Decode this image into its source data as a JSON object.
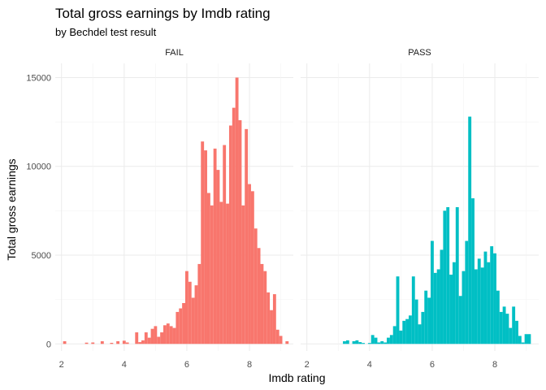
{
  "chart_data": {
    "type": "bar",
    "title": "Total gross earnings by Imdb rating",
    "subtitle": "by Bechdel test result",
    "xlabel": "Imdb rating",
    "ylabel": "Total gross earnings",
    "xlim": [
      1.8,
      9.4
    ],
    "ylim": [
      -400,
      15800
    ],
    "x_ticks": [
      2,
      4,
      6,
      8
    ],
    "y_ticks": [
      0,
      5000,
      10000,
      15000
    ],
    "bin_width": 0.1,
    "grid": true,
    "colors": {
      "FAIL": "#F8766D",
      "PASS": "#00BFC4"
    },
    "panels": [
      {
        "name": "FAIL",
        "bars": [
          {
            "x": 2.1,
            "y": 150
          },
          {
            "x": 2.8,
            "y": 70
          },
          {
            "x": 3.0,
            "y": 80
          },
          {
            "x": 3.3,
            "y": 150
          },
          {
            "x": 3.6,
            "y": 60
          },
          {
            "x": 3.8,
            "y": 150
          },
          {
            "x": 4.0,
            "y": 180
          },
          {
            "x": 4.1,
            "y": 80
          },
          {
            "x": 4.4,
            "y": 650
          },
          {
            "x": 4.5,
            "y": 100
          },
          {
            "x": 4.6,
            "y": 200
          },
          {
            "x": 4.7,
            "y": 650
          },
          {
            "x": 4.8,
            "y": 350
          },
          {
            "x": 4.9,
            "y": 850
          },
          {
            "x": 5.0,
            "y": 1000
          },
          {
            "x": 5.1,
            "y": 400
          },
          {
            "x": 5.2,
            "y": 650
          },
          {
            "x": 5.3,
            "y": 1050
          },
          {
            "x": 5.4,
            "y": 1150
          },
          {
            "x": 5.5,
            "y": 1000
          },
          {
            "x": 5.6,
            "y": 900
          },
          {
            "x": 5.7,
            "y": 1800
          },
          {
            "x": 5.8,
            "y": 2000
          },
          {
            "x": 5.9,
            "y": 2300
          },
          {
            "x": 6.0,
            "y": 4100
          },
          {
            "x": 6.1,
            "y": 3500
          },
          {
            "x": 6.2,
            "y": 2600
          },
          {
            "x": 6.3,
            "y": 3300
          },
          {
            "x": 6.4,
            "y": 4500
          },
          {
            "x": 6.5,
            "y": 11400
          },
          {
            "x": 6.6,
            "y": 10900
          },
          {
            "x": 6.7,
            "y": 8500
          },
          {
            "x": 6.8,
            "y": 7800
          },
          {
            "x": 6.9,
            "y": 11000
          },
          {
            "x": 7.0,
            "y": 9800
          },
          {
            "x": 7.1,
            "y": 8000
          },
          {
            "x": 7.2,
            "y": 11200
          },
          {
            "x": 7.3,
            "y": 7900
          },
          {
            "x": 7.4,
            "y": 12300
          },
          {
            "x": 7.5,
            "y": 13300
          },
          {
            "x": 7.6,
            "y": 15000
          },
          {
            "x": 7.7,
            "y": 12600
          },
          {
            "x": 7.8,
            "y": 7800
          },
          {
            "x": 7.9,
            "y": 12100
          },
          {
            "x": 8.0,
            "y": 9000
          },
          {
            "x": 8.1,
            "y": 8600
          },
          {
            "x": 8.2,
            "y": 6500
          },
          {
            "x": 8.3,
            "y": 5400
          },
          {
            "x": 8.4,
            "y": 4500
          },
          {
            "x": 8.5,
            "y": 4100
          },
          {
            "x": 8.6,
            "y": 2900
          },
          {
            "x": 8.7,
            "y": 1900
          },
          {
            "x": 8.8,
            "y": 2800
          },
          {
            "x": 8.9,
            "y": 800
          },
          {
            "x": 9.0,
            "y": 450
          },
          {
            "x": 9.2,
            "y": 150
          }
        ]
      },
      {
        "name": "PASS",
        "bars": [
          {
            "x": 3.2,
            "y": 150
          },
          {
            "x": 3.3,
            "y": 200
          },
          {
            "x": 3.5,
            "y": 150
          },
          {
            "x": 3.6,
            "y": 200
          },
          {
            "x": 3.7,
            "y": 100
          },
          {
            "x": 3.8,
            "y": 50
          },
          {
            "x": 4.0,
            "y": 50
          },
          {
            "x": 4.1,
            "y": 500
          },
          {
            "x": 4.2,
            "y": 350
          },
          {
            "x": 4.3,
            "y": 80
          },
          {
            "x": 4.4,
            "y": 150
          },
          {
            "x": 4.5,
            "y": 80
          },
          {
            "x": 4.6,
            "y": 350
          },
          {
            "x": 4.7,
            "y": 500
          },
          {
            "x": 4.8,
            "y": 1000
          },
          {
            "x": 4.9,
            "y": 3800
          },
          {
            "x": 5.0,
            "y": 750
          },
          {
            "x": 5.1,
            "y": 1300
          },
          {
            "x": 5.2,
            "y": 1400
          },
          {
            "x": 5.3,
            "y": 1600
          },
          {
            "x": 5.4,
            "y": 3800
          },
          {
            "x": 5.5,
            "y": 2500
          },
          {
            "x": 5.6,
            "y": 1100
          },
          {
            "x": 5.7,
            "y": 1800
          },
          {
            "x": 5.8,
            "y": 3000
          },
          {
            "x": 5.9,
            "y": 2600
          },
          {
            "x": 6.0,
            "y": 5800
          },
          {
            "x": 6.1,
            "y": 4000
          },
          {
            "x": 6.2,
            "y": 4200
          },
          {
            "x": 6.3,
            "y": 5300
          },
          {
            "x": 6.4,
            "y": 7500
          },
          {
            "x": 6.5,
            "y": 7700
          },
          {
            "x": 6.6,
            "y": 3900
          },
          {
            "x": 6.7,
            "y": 4600
          },
          {
            "x": 6.8,
            "y": 7700
          },
          {
            "x": 6.9,
            "y": 2700
          },
          {
            "x": 7.0,
            "y": 4100
          },
          {
            "x": 7.1,
            "y": 5800
          },
          {
            "x": 7.2,
            "y": 12800
          },
          {
            "x": 7.3,
            "y": 8200
          },
          {
            "x": 7.4,
            "y": 4200
          },
          {
            "x": 7.5,
            "y": 4800
          },
          {
            "x": 7.6,
            "y": 4300
          },
          {
            "x": 7.7,
            "y": 5200
          },
          {
            "x": 7.8,
            "y": 4600
          },
          {
            "x": 7.9,
            "y": 5500
          },
          {
            "x": 8.0,
            "y": 5100
          },
          {
            "x": 8.1,
            "y": 3000
          },
          {
            "x": 8.2,
            "y": 1800
          },
          {
            "x": 8.3,
            "y": 2100
          },
          {
            "x": 8.4,
            "y": 1700
          },
          {
            "x": 8.5,
            "y": 900
          },
          {
            "x": 8.6,
            "y": 2100
          },
          {
            "x": 8.7,
            "y": 1300
          },
          {
            "x": 8.8,
            "y": 450
          },
          {
            "x": 8.9,
            "y": 80
          },
          {
            "x": 9.0,
            "y": 550
          },
          {
            "x": 9.1,
            "y": 550
          }
        ]
      }
    ]
  }
}
